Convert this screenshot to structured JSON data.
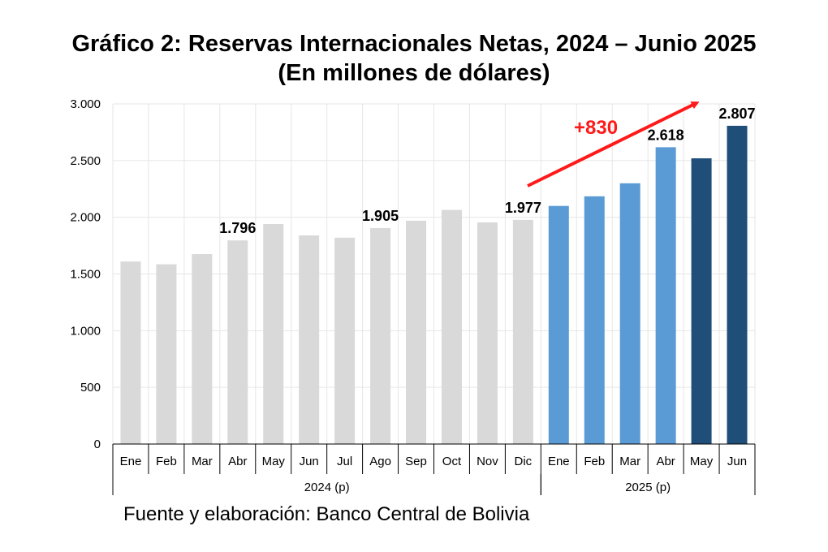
{
  "title": {
    "line1": "Gráfico 2: Reservas Internacionales Netas, 2024 – Junio 2025",
    "line2": "(En millones de dólares)"
  },
  "source": "Fuente y elaboración: Banco Central de Bolivia",
  "chart_data": {
    "type": "bar",
    "categories": [
      "Ene",
      "Feb",
      "Mar",
      "Abr",
      "May",
      "Jun",
      "Jul",
      "Ago",
      "Sep",
      "Oct",
      "Nov",
      "Dic",
      "Ene",
      "Feb",
      "Mar",
      "Abr",
      "May",
      "Jun"
    ],
    "groups": [
      {
        "label": "2024 (p)",
        "count": 12
      },
      {
        "label": "2025 (p)",
        "count": 6
      }
    ],
    "values": [
      1610,
      1585,
      1675,
      1796,
      1940,
      1840,
      1820,
      1905,
      1970,
      2065,
      1955,
      1977,
      2100,
      2185,
      2300,
      2618,
      2520,
      2807
    ],
    "bar_colors": [
      "#d9d9d9",
      "#d9d9d9",
      "#d9d9d9",
      "#d9d9d9",
      "#d9d9d9",
      "#d9d9d9",
      "#d9d9d9",
      "#d9d9d9",
      "#d9d9d9",
      "#d9d9d9",
      "#d9d9d9",
      "#d9d9d9",
      "#5b9bd5",
      "#5b9bd5",
      "#5b9bd5",
      "#5b9bd5",
      "#1f4e79",
      "#1f4e79"
    ],
    "data_labels": [
      {
        "index": 3,
        "text": "1.796"
      },
      {
        "index": 7,
        "text": "1.905"
      },
      {
        "index": 11,
        "text": "1.977"
      },
      {
        "index": 15,
        "text": "2.618"
      },
      {
        "index": 17,
        "text": "2.807"
      }
    ],
    "yticks": [
      0,
      500,
      1000,
      1500,
      2000,
      2500,
      3000
    ],
    "ytick_labels": [
      "0",
      "500",
      "1.000",
      "1.500",
      "2.000",
      "2.500",
      "3.000"
    ],
    "ylim": [
      0,
      3000
    ],
    "grid": true,
    "annotation": {
      "text": "+830",
      "color": "#ff1a1a"
    }
  }
}
